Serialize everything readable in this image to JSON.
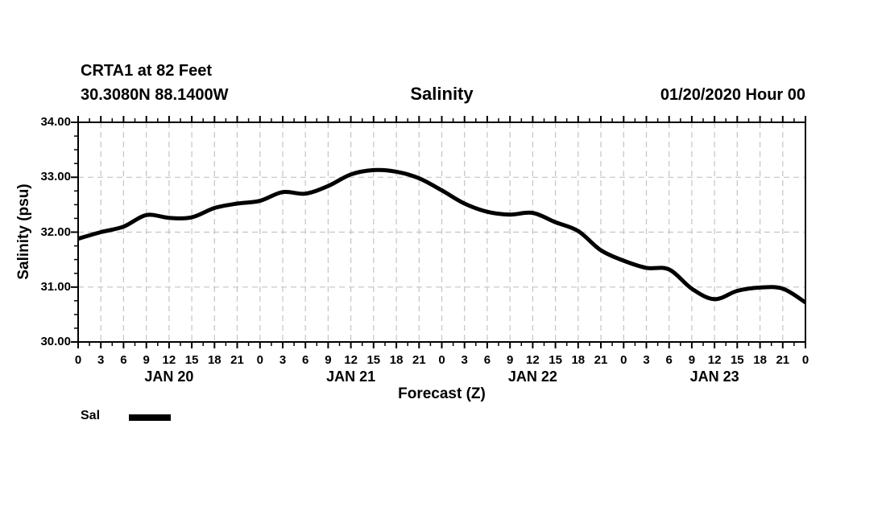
{
  "header": {
    "station_line1": "CRTA1 at 82 Feet",
    "station_line2": "30.3080N 88.1400W",
    "title": "Salinity",
    "run_time": "01/20/2020 Hour 00"
  },
  "chart_data": {
    "type": "line",
    "title": "Salinity",
    "xlabel": "Forecast (Z)",
    "ylabel": "Salinity (psu)",
    "ylim": [
      30,
      34
    ],
    "xlim_hours": [
      0,
      96
    ],
    "y_tick_values": [
      34,
      33,
      32,
      31,
      30
    ],
    "y_tick_labels": [
      "34.00",
      "33.00",
      "32.00",
      "31.00",
      "30.00"
    ],
    "y_minor_step": 0.25,
    "x_tick_step_hours": 3,
    "x_minor_step_hours": 1.5,
    "x_tick_labels": [
      "0",
      "3",
      "6",
      "9",
      "12",
      "15",
      "18",
      "21",
      "0",
      "3",
      "6",
      "9",
      "12",
      "15",
      "18",
      "21",
      "0",
      "3",
      "6",
      "9",
      "12",
      "15",
      "18",
      "21",
      "0",
      "3",
      "6",
      "9",
      "12",
      "15",
      "18",
      "21",
      "0"
    ],
    "day_labels": [
      {
        "label": "JAN 20",
        "hour": 12
      },
      {
        "label": "JAN 21",
        "hour": 36
      },
      {
        "label": "JAN 22",
        "hour": 60
      },
      {
        "label": "JAN 23",
        "hour": 84
      }
    ],
    "grid": {
      "vertical_every_hours": 3,
      "horizontal_at": [
        31,
        32,
        33
      ],
      "style": "dashed",
      "color": "#c4c4c4"
    },
    "legend": {
      "label": "Sal",
      "position": "bottom-left"
    },
    "series": [
      {
        "name": "Sal",
        "color": "#000000",
        "line_width": 5,
        "x_hours": [
          0,
          3,
          6,
          9,
          12,
          15,
          18,
          21,
          24,
          27,
          30,
          33,
          36,
          39,
          42,
          45,
          48,
          51,
          54,
          57,
          60,
          63,
          66,
          69,
          72,
          75,
          78,
          81,
          84,
          87,
          90,
          93,
          96
        ],
        "values": [
          31.88,
          32.0,
          32.1,
          32.31,
          32.26,
          32.27,
          32.44,
          32.52,
          32.57,
          32.73,
          32.7,
          32.84,
          33.05,
          33.13,
          33.1,
          32.98,
          32.76,
          32.52,
          32.37,
          32.32,
          32.35,
          32.18,
          32.02,
          31.67,
          31.48,
          31.35,
          31.32,
          30.97,
          30.78,
          30.93,
          30.99,
          30.97,
          30.72
        ]
      }
    ]
  }
}
